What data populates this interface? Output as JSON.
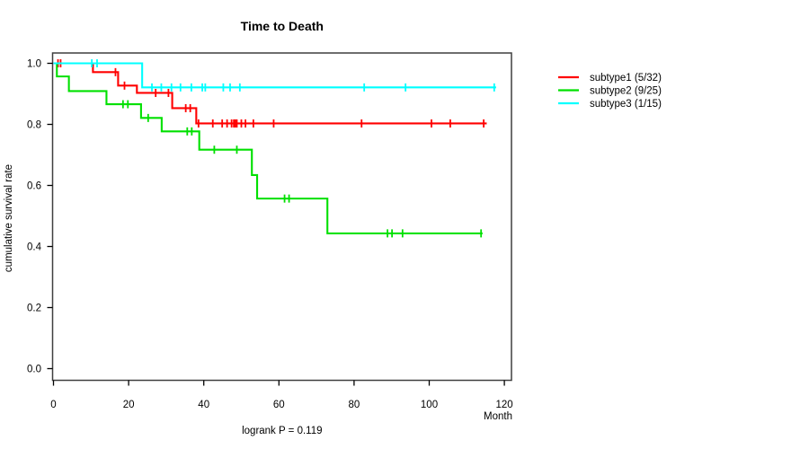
{
  "chart_data": {
    "type": "line",
    "variant": "kaplan-meier-step",
    "title": "Time to Death",
    "xlabel": "Month",
    "ylabel": "cumulative survival rate",
    "annotation": "logrank P = 0.119",
    "xlim": [
      0,
      122
    ],
    "ylim": [
      0,
      1.04
    ],
    "xticks": [
      0,
      20,
      40,
      60,
      80,
      100,
      120
    ],
    "yticks": [
      0.0,
      0.2,
      0.4,
      0.6,
      0.8,
      1.0
    ],
    "grid": false,
    "legend_position": "right-outside",
    "box_color": "#3f3f3f",
    "series": [
      {
        "name": "subtype1",
        "label": "subtype1 (5/32)",
        "color": "#ff0000",
        "events_total": "5/32",
        "steps": [
          [
            0,
            1.0
          ],
          [
            10.5,
            0.971
          ],
          [
            17.2,
            0.927
          ],
          [
            22.2,
            0.903
          ],
          [
            31.6,
            0.853
          ],
          [
            38.0,
            0.803
          ]
        ],
        "end": 115.3,
        "censors": [
          [
            1.2,
            1.0
          ],
          [
            1.9,
            1.0
          ],
          [
            16.5,
            0.971
          ],
          [
            18.9,
            0.927
          ],
          [
            27.2,
            0.903
          ],
          [
            30.6,
            0.903
          ],
          [
            35.2,
            0.853
          ],
          [
            36.4,
            0.853
          ],
          [
            38.6,
            0.803
          ],
          [
            42.4,
            0.803
          ],
          [
            44.9,
            0.803
          ],
          [
            46.2,
            0.803
          ],
          [
            47.4,
            0.803
          ],
          [
            48.0,
            0.803
          ],
          [
            48.4,
            0.803
          ],
          [
            48.8,
            0.803
          ],
          [
            50.0,
            0.803
          ],
          [
            51.1,
            0.803
          ],
          [
            53.2,
            0.803
          ],
          [
            58.6,
            0.803
          ],
          [
            82.0,
            0.803
          ],
          [
            100.6,
            0.803
          ],
          [
            105.6,
            0.803
          ],
          [
            114.5,
            0.803
          ]
        ]
      },
      {
        "name": "subtype2",
        "label": "subtype2 (9/25)",
        "color": "#00e000",
        "events_total": "9/25",
        "steps": [
          [
            0,
            1.0
          ],
          [
            0.9,
            0.957
          ],
          [
            4.1,
            0.909
          ],
          [
            14.1,
            0.866
          ],
          [
            23.3,
            0.821
          ],
          [
            28.8,
            0.777
          ],
          [
            38.8,
            0.717
          ],
          [
            52.8,
            0.634
          ],
          [
            54.2,
            0.557
          ],
          [
            72.9,
            0.443
          ]
        ],
        "end": 114.2,
        "censors": [
          [
            18.5,
            0.866
          ],
          [
            19.8,
            0.866
          ],
          [
            25.2,
            0.821
          ],
          [
            35.6,
            0.777
          ],
          [
            36.8,
            0.777
          ],
          [
            42.8,
            0.717
          ],
          [
            48.8,
            0.717
          ],
          [
            61.5,
            0.557
          ],
          [
            62.7,
            0.557
          ],
          [
            88.9,
            0.443
          ],
          [
            90.1,
            0.443
          ],
          [
            92.9,
            0.443
          ],
          [
            113.8,
            0.443
          ]
        ]
      },
      {
        "name": "subtype3",
        "label": "subtype3 (1/15)",
        "color": "#00ffff",
        "events_total": "1/15",
        "steps": [
          [
            0,
            1.0
          ],
          [
            23.6,
            0.921
          ]
        ],
        "end": 117.8,
        "censors": [
          [
            10.2,
            1.0
          ],
          [
            11.6,
            1.0
          ],
          [
            26.2,
            0.921
          ],
          [
            28.7,
            0.921
          ],
          [
            31.4,
            0.921
          ],
          [
            33.8,
            0.921
          ],
          [
            36.7,
            0.921
          ],
          [
            39.6,
            0.921
          ],
          [
            40.4,
            0.921
          ],
          [
            45.2,
            0.921
          ],
          [
            47.0,
            0.921
          ],
          [
            49.6,
            0.921
          ],
          [
            82.7,
            0.921
          ],
          [
            93.7,
            0.921
          ],
          [
            117.3,
            0.921
          ]
        ]
      }
    ]
  }
}
